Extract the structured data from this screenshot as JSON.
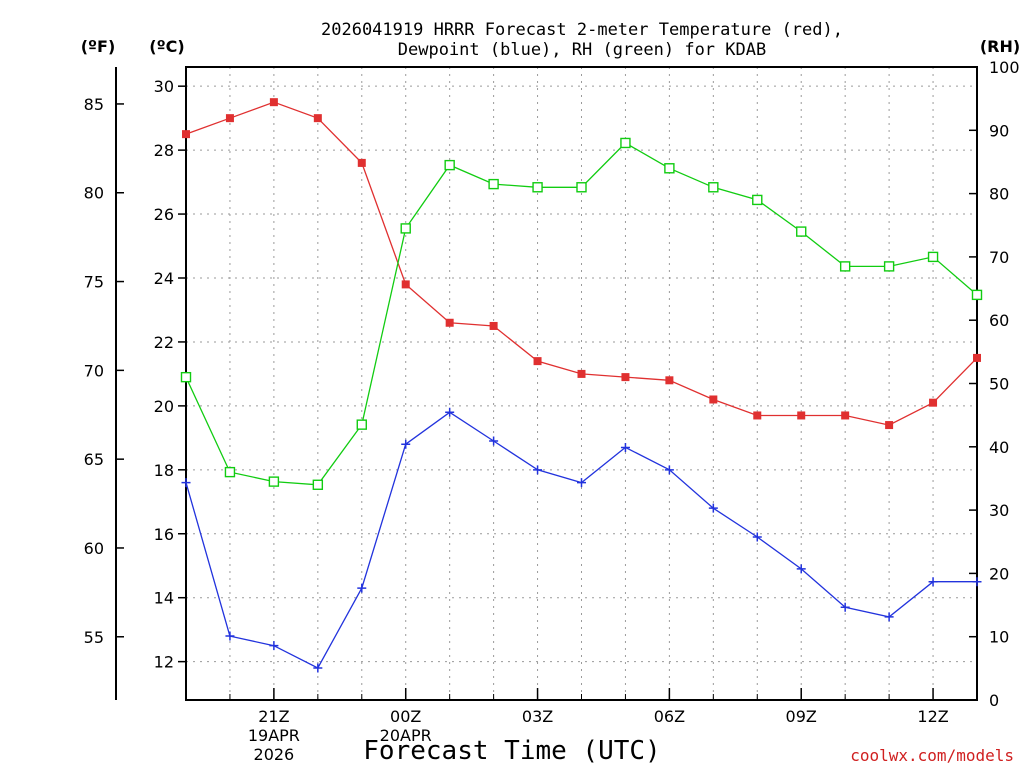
{
  "title": {
    "line1": "2026041919 HRRR Forecast 2-meter Temperature (red),",
    "line2": "Dewpoint (blue), RH (green) for KDAB"
  },
  "axes": {
    "unit_f": "(ºF)",
    "unit_c": "(ºC)",
    "unit_rh": "(RH)",
    "xlabel": "Forecast Time (UTC)",
    "credit": "coolwx.com/models"
  },
  "colors": {
    "temperature": "#e03030",
    "dewpoint": "#2233dd",
    "rh": "#11cc11"
  },
  "chart_data": {
    "type": "line",
    "title": "2026041919 HRRR Forecast 2-meter Temperature (red), Dewpoint (blue), RH (green) for KDAB",
    "xlabel": "Forecast Time (UTC)",
    "x_range_hours": [
      -5,
      13
    ],
    "x_hours": [
      -5,
      -4,
      -3,
      -2,
      -1,
      0,
      1,
      2,
      3,
      4,
      5,
      6,
      7,
      8,
      9,
      10,
      11,
      12,
      13
    ],
    "x_ticks": [
      {
        "hour": -3,
        "label": "21Z",
        "sub1": "19APR",
        "sub2": "2026"
      },
      {
        "hour": 0,
        "label": "00Z",
        "sub1": "20APR",
        "sub2": ""
      },
      {
        "hour": 3,
        "label": "03Z",
        "sub1": "",
        "sub2": ""
      },
      {
        "hour": 6,
        "label": "06Z",
        "sub1": "",
        "sub2": ""
      },
      {
        "hour": 9,
        "label": "09Z",
        "sub1": "",
        "sub2": ""
      },
      {
        "hour": 12,
        "label": "12Z",
        "sub1": "",
        "sub2": ""
      }
    ],
    "y_left_c": {
      "label": "(ºC)",
      "range": [
        10.8,
        30.6
      ],
      "ticks": [
        12,
        14,
        16,
        18,
        20,
        22,
        24,
        26,
        28,
        30
      ]
    },
    "y_left_f": {
      "label": "(ºF)",
      "ticks": [
        55,
        60,
        65,
        70,
        75,
        80,
        85
      ]
    },
    "y_right_rh": {
      "label": "(RH)",
      "range": [
        0,
        100
      ],
      "ticks": [
        0,
        10,
        20,
        30,
        40,
        50,
        60,
        70,
        80,
        90,
        100
      ]
    },
    "grid": true,
    "series": [
      {
        "name": "Temperature",
        "unit": "C",
        "axis": "left",
        "color": "red",
        "marker": "filled-square",
        "values": [
          28.5,
          29.0,
          29.5,
          29.0,
          27.6,
          23.8,
          22.6,
          22.5,
          21.4,
          21.0,
          20.9,
          20.8,
          20.2,
          19.7,
          19.7,
          19.7,
          19.4,
          20.1,
          21.5
        ]
      },
      {
        "name": "Dewpoint",
        "unit": "C",
        "axis": "left",
        "color": "blue",
        "marker": "plus",
        "values": [
          17.6,
          12.8,
          12.5,
          11.8,
          14.3,
          18.8,
          19.8,
          18.9,
          18.0,
          17.6,
          18.7,
          18.0,
          16.8,
          15.9,
          14.9,
          13.7,
          13.4,
          14.5,
          14.5
        ]
      },
      {
        "name": "RH",
        "unit": "%",
        "axis": "right",
        "color": "green",
        "marker": "open-square",
        "values": [
          51,
          36,
          34.5,
          34,
          43.5,
          74.5,
          84.5,
          81.5,
          81,
          81,
          88,
          84,
          81,
          79,
          74,
          68.5,
          68.5,
          70,
          64
        ]
      }
    ]
  }
}
